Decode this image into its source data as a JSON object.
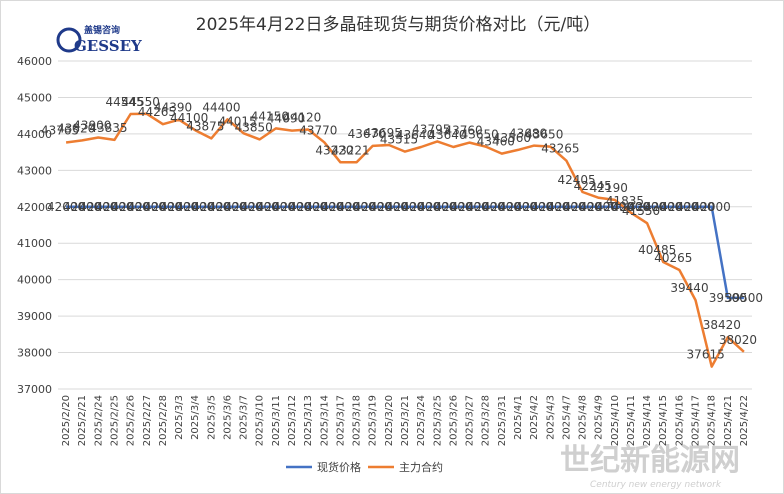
{
  "logo": {
    "cn": "盖锡咨询",
    "en": "GESSEY"
  },
  "watermark": {
    "cn": "世纪新能源网",
    "en": "Century new energy network"
  },
  "chart_data": {
    "type": "line",
    "title": "2025年4月22日多晶硅现货与期货价格对比（元/吨）",
    "xlabel": "",
    "ylabel": "",
    "ylim": [
      37000,
      46000
    ],
    "yticks": [
      37000,
      38000,
      39000,
      40000,
      41000,
      42000,
      43000,
      44000,
      45000,
      46000
    ],
    "grid": true,
    "legend_position": "bottom",
    "categories": [
      "2025/2/20",
      "2025/2/21",
      "2025/2/24",
      "2025/2/25",
      "2025/2/26",
      "2025/2/27",
      "2025/2/28",
      "2025/3/3",
      "2025/3/4",
      "2025/3/5",
      "2025/3/6",
      "2025/3/7",
      "2025/3/10",
      "2025/3/11",
      "2025/3/12",
      "2025/3/13",
      "2025/3/14",
      "2025/3/17",
      "2025/3/18",
      "2025/3/19",
      "2025/3/20",
      "2025/3/21",
      "2025/3/24",
      "2025/3/25",
      "2025/3/26",
      "2025/3/27",
      "2025/3/28",
      "2025/3/31",
      "2025/4/1",
      "2025/4/2",
      "2025/4/3",
      "2025/4/7",
      "2025/4/8",
      "2025/4/9",
      "2025/4/10",
      "2025/4/11",
      "2025/4/14",
      "2025/4/15",
      "2025/4/16",
      "2025/4/17",
      "2025/4/18",
      "2025/4/21",
      "2025/4/22"
    ],
    "series": [
      {
        "name": "现货价格",
        "color": "#4472c4",
        "values": [
          42000,
          42000,
          42000,
          42000,
          42000,
          42000,
          42000,
          42000,
          42000,
          42000,
          42000,
          42000,
          42000,
          42000,
          42000,
          42000,
          42000,
          42000,
          42000,
          42000,
          42000,
          42000,
          42000,
          42000,
          42000,
          42000,
          42000,
          42000,
          42000,
          42000,
          42000,
          42000,
          42000,
          42000,
          42000,
          42000,
          42000,
          42000,
          42000,
          42000,
          42000,
          39500,
          39500
        ]
      },
      {
        "name": "主力合约",
        "color": "#ed7d31",
        "values": [
          43765,
          43820,
          43900,
          43835,
          44545,
          44550,
          44265,
          44390,
          44100,
          43875,
          44400,
          44015,
          43850,
          44150,
          44090,
          44120,
          43770,
          43220,
          43221,
          43670,
          43695,
          43515,
          43640,
          43795,
          43640,
          43760,
          43650,
          43460,
          43560,
          43680,
          43650,
          43265,
          42405,
          42245,
          42190,
          41835,
          41550,
          40485,
          40265,
          39440,
          37615,
          38420,
          38020
        ]
      }
    ]
  }
}
